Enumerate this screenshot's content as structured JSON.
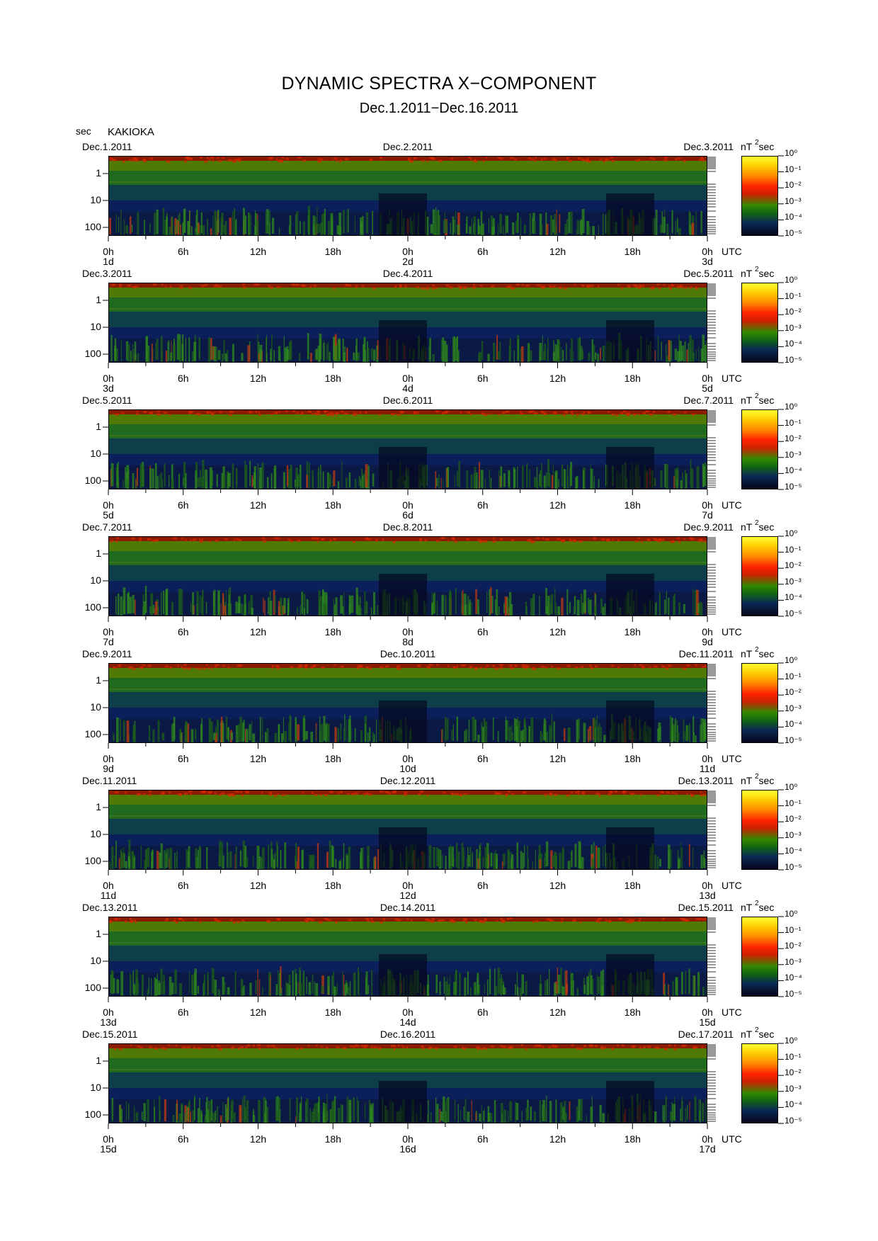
{
  "title": "DYNAMIC SPECTRA X−COMPONENT",
  "subtitle": "Dec.1.2011−Dec.16.2011",
  "yunit_label": "sec",
  "station": "KAKIOKA",
  "utc_label": "UTC",
  "colorbar_unit": "nT",
  "colorbar_unit_sup": "2",
  "colorbar_unit_suffix": "sec",
  "chart_data": {
    "type": "heatmap",
    "title": "DYNAMIC SPECTRA X−COMPONENT",
    "subtitle": "Dec.1.2011−Dec.16.2011",
    "ylabel": "sec",
    "y_ticks": [
      "1",
      "10",
      "100"
    ],
    "y_scale": "log",
    "x_ticks": [
      "0h",
      "6h",
      "12h",
      "18h",
      "0h",
      "6h",
      "12h",
      "18h",
      "0h"
    ],
    "colorbar": {
      "unit": "nT²sec",
      "scale": "log",
      "ticks": [
        "10⁰",
        "10⁻¹",
        "10⁻²",
        "10⁻³",
        "10⁻⁴",
        "10⁻⁵"
      ],
      "colors": [
        "#ffff33",
        "#ff8800",
        "#ff2200",
        "#338800",
        "#0a2a55",
        "#05051a"
      ]
    },
    "panels": [
      {
        "dates": [
          "Dec.1.2011",
          "Dec.2.2011",
          "Dec.3.2011"
        ],
        "days": [
          "1d",
          "2d",
          "3d"
        ]
      },
      {
        "dates": [
          "Dec.3.2011",
          "Dec.4.2011",
          "Dec.5.2011"
        ],
        "days": [
          "3d",
          "4d",
          "5d"
        ]
      },
      {
        "dates": [
          "Dec.5.2011",
          "Dec.6.2011",
          "Dec.7.2011"
        ],
        "days": [
          "5d",
          "6d",
          "7d"
        ]
      },
      {
        "dates": [
          "Dec.7.2011",
          "Dec.8.2011",
          "Dec.9.2011"
        ],
        "days": [
          "7d",
          "8d",
          "9d"
        ]
      },
      {
        "dates": [
          "Dec.9.2011",
          "Dec.10.2011",
          "Dec.11.2011"
        ],
        "days": [
          "9d",
          "10d",
          "11d"
        ]
      },
      {
        "dates": [
          "Dec.11.2011",
          "Dec.12.2011",
          "Dec.13.2011"
        ],
        "days": [
          "11d",
          "12d",
          "13d"
        ]
      },
      {
        "dates": [
          "Dec.13.2011",
          "Dec.14.2011",
          "Dec.15.2011"
        ],
        "days": [
          "13d",
          "14d",
          "15d"
        ]
      },
      {
        "dates": [
          "Dec.15.2011",
          "Dec.16.2011",
          "Dec.17.2011"
        ],
        "days": [
          "15d",
          "16d",
          "17d"
        ]
      }
    ]
  }
}
